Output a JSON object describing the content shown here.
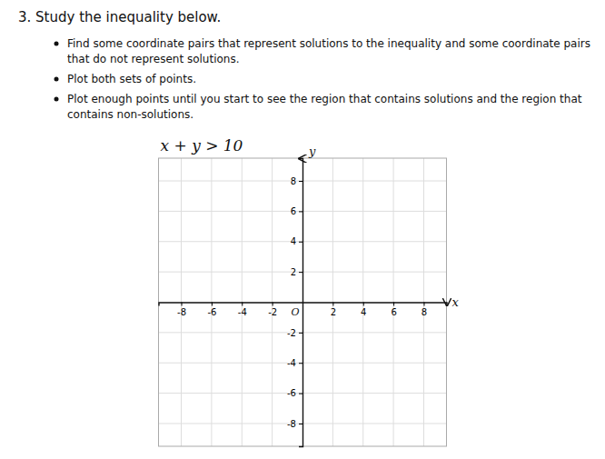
{
  "chart_data": {
    "type": "coordinate_plane",
    "title": "3. Study the inequality below.",
    "bullets": [
      "Find some coordinate pairs that represent solutions to the inequality and some coordinate pairs that do not represent solutions.",
      "Plot both sets of points.",
      "Plot enough points until you start to see the region that contains solutions and the region that contains non-solutions."
    ],
    "annotations": [
      "x + y > 10",
      "O"
    ],
    "x_label": "x",
    "y_label": "y",
    "xlim": [
      -9.5,
      9.5
    ],
    "ylim": [
      -9.5,
      9.5
    ],
    "xticks": [
      -8,
      -6,
      -4,
      -2,
      2,
      4,
      6,
      8
    ],
    "yticks": [
      -8,
      -6,
      -4,
      -2,
      2,
      4,
      6,
      8
    ],
    "grid": true
  }
}
